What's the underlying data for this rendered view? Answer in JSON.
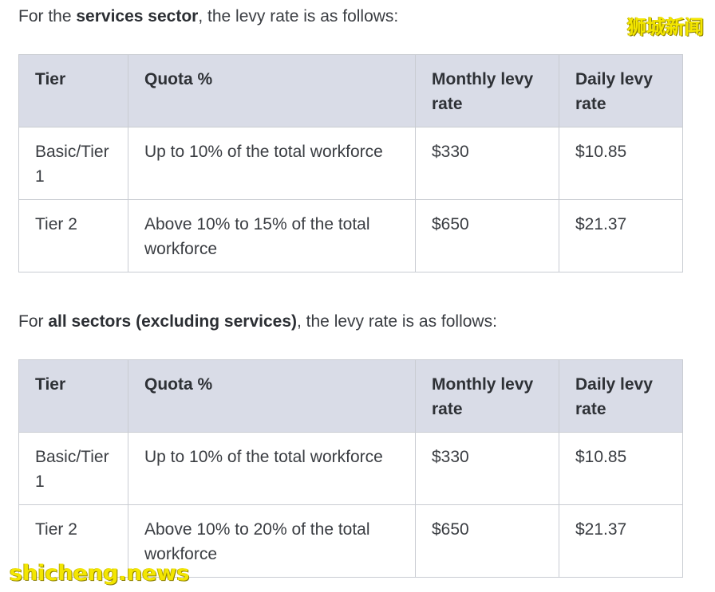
{
  "section1": {
    "intro_before": "For the ",
    "intro_bold": "services sector",
    "intro_after": ", the levy rate is as follows:",
    "headers": [
      "Tier",
      "Quota %",
      "Monthly levy rate",
      "Daily levy rate"
    ],
    "rows": [
      {
        "tier": "Basic/Tier 1",
        "quota": "Up to 10% of the total workforce",
        "monthly": "$330",
        "daily": "$10.85"
      },
      {
        "tier": "Tier 2",
        "quota": "Above 10% to 15% of the total workforce",
        "monthly": "$650",
        "daily": "$21.37"
      }
    ]
  },
  "section2": {
    "intro_before": "For ",
    "intro_bold": "all sectors (excluding services)",
    "intro_after": ", the levy rate is as follows:",
    "headers": [
      "Tier",
      "Quota %",
      "Monthly levy rate",
      "Daily levy rate"
    ],
    "rows": [
      {
        "tier": "Basic/Tier 1",
        "quota": "Up to 10% of the total workforce",
        "monthly": "$330",
        "daily": "$10.85"
      },
      {
        "tier": "Tier 2",
        "quota": "Above 10% to 20% of the total workforce",
        "monthly": "$650",
        "daily": "$21.37"
      }
    ]
  },
  "watermarks": {
    "top_right": "狮城新闻",
    "bottom_left": "shicheng.news"
  },
  "colors": {
    "header_bg": "#d9dce7",
    "border": "#c9ccd2",
    "watermark": "#f3e600"
  }
}
